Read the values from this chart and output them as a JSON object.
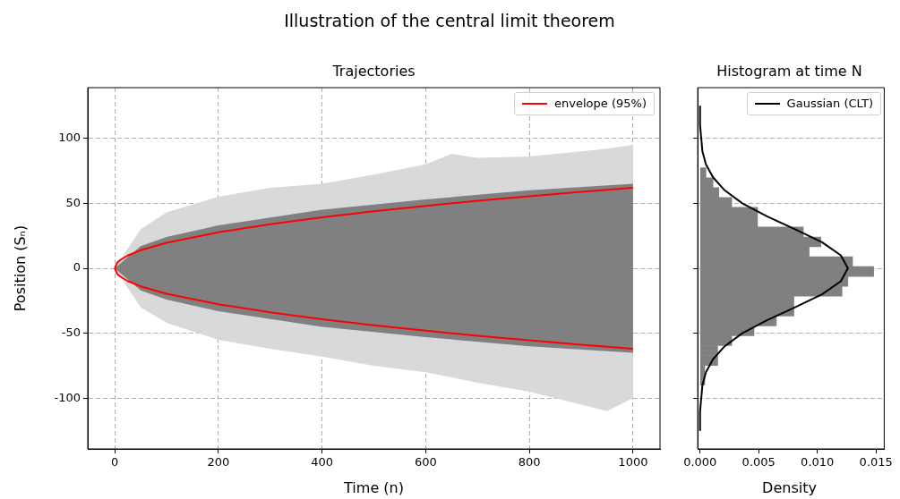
{
  "chart_data": [
    {
      "type": "line",
      "title": "Illustration of the central limit theorem",
      "subtitle": "Trajectories",
      "xlabel": "Time (n)",
      "ylabel": "Position (Sₙ)",
      "xlim": [
        -52,
        1052
      ],
      "xticks": [
        0,
        200,
        400,
        600,
        800,
        1000
      ],
      "ylim": [
        -139,
        139
      ],
      "yticks": [
        -100,
        -50,
        0,
        50,
        100
      ],
      "grid": true,
      "legend": "top right",
      "series": [
        {
          "color": "#d9d9d9",
          "x": [
            0,
            50,
            100,
            200,
            300,
            400,
            500,
            600,
            650,
            700,
            800,
            900,
            950,
            1000
          ],
          "values": [
            null,
            null,
            null,
            null,
            null,
            null,
            null,
            null,
            null,
            null,
            null,
            null,
            null,
            null
          ],
          "lower": [
            0,
            -30,
            -42,
            -55,
            -62,
            -68,
            -75,
            -80,
            -84,
            -88,
            -95,
            -105,
            -110,
            -100
          ],
          "upper": [
            0,
            30,
            43,
            55,
            62,
            65,
            72,
            80,
            88,
            85,
            86,
            90,
            92,
            95
          ]
        },
        {
          "color": "#808080",
          "x": [
            0,
            50,
            100,
            200,
            400,
            600,
            800,
            1000
          ],
          "values": [
            null,
            null,
            null,
            null,
            null,
            null,
            null,
            null
          ],
          "lower": [
            0,
            -17,
            -24,
            -33,
            -45,
            -53,
            -60,
            -65
          ],
          "upper": [
            0,
            17,
            24,
            33,
            45,
            53,
            60,
            65
          ]
        },
        {
          "name": "envelope (95%)",
          "color": "#ff0000",
          "x": [
            0,
            5,
            10,
            25,
            50,
            100,
            200,
            300,
            400,
            500,
            600,
            700,
            800,
            900,
            1000
          ],
          "values": [
            0,
            4.4,
            6.2,
            9.8,
            13.9,
            19.6,
            27.7,
            33.9,
            39.2,
            43.8,
            48.0,
            51.9,
            55.4,
            58.8,
            62.0
          ]
        },
        {
          "color": "#ff0000",
          "x": [
            0,
            5,
            10,
            25,
            50,
            100,
            200,
            300,
            400,
            500,
            600,
            700,
            800,
            900,
            1000
          ],
          "values": [
            0,
            -4.4,
            -6.2,
            -9.8,
            -13.9,
            -19.6,
            -27.7,
            -33.9,
            -39.2,
            -43.8,
            -48.0,
            -51.9,
            -55.4,
            -58.8,
            -62.0
          ]
        }
      ]
    },
    {
      "type": "histogram",
      "title": "Histogram at time N",
      "xlabel": "Density",
      "orientation": "horizontal",
      "color": "#808080",
      "bins": [
        -89.9,
        -82.3,
        -74.7,
        -67.1,
        -59.5,
        -51.9,
        -44.3,
        -36.7,
        -29.1,
        -21.5,
        -13.9,
        -6.3,
        1.3,
        8.9,
        16.5,
        24.1,
        31.7,
        39.3,
        46.9,
        54.5,
        62.1,
        69.7,
        77.3
      ],
      "values": [
        0.0004,
        0.0004,
        0.0015,
        0.0015,
        0.0027,
        0.0046,
        0.0065,
        0.008,
        0.008,
        0.0121,
        0.0126,
        0.0148,
        0.013,
        0.0093,
        0.0103,
        0.0088,
        0.0049,
        0.0049,
        0.0027,
        0.0016,
        0.0011,
        0.0005
      ],
      "xlim": [
        -0.0002,
        0.0157
      ],
      "xticks": [
        {
          "value": 0,
          "label": "0.000"
        },
        {
          "value": 0.005,
          "label": "0.005"
        },
        {
          "value": 0.01,
          "label": "0.010"
        },
        {
          "value": 0.015,
          "label": "0.015"
        }
      ],
      "ylim": [
        -139,
        139
      ],
      "yticks": [
        -100,
        -50,
        0,
        50,
        100
      ],
      "tick_labels": "x",
      "grid": "y",
      "legend": "top right",
      "series": [
        {
          "type": "line",
          "name": "Gaussian (CLT)",
          "color": "#000000",
          "x": [
            -125,
            -110,
            -100,
            -90,
            -80,
            -70,
            -60,
            -50,
            -40,
            -30,
            -20,
            -10,
            0,
            10,
            20,
            30,
            40,
            50,
            60,
            70,
            80,
            90,
            100,
            110,
            125
          ],
          "values": [
            0,
            0,
            0.0001,
            0.0002,
            0.0005,
            0.0011,
            0.0021,
            0.0036,
            0.0057,
            0.0081,
            0.0104,
            0.012,
            0.0126,
            0.012,
            0.0104,
            0.0081,
            0.0057,
            0.0036,
            0.0021,
            0.0011,
            0.0005,
            0.0002,
            0.0001,
            0,
            0
          ]
        }
      ]
    }
  ]
}
